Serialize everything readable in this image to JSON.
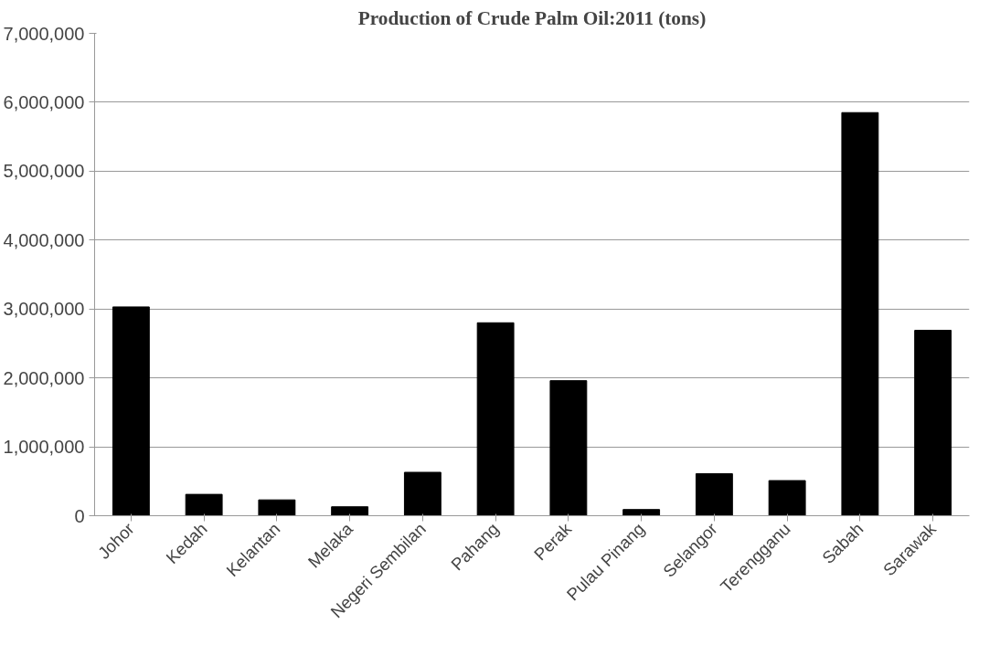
{
  "chart_data": {
    "type": "bar",
    "title": "Production of Crude Palm Oil:2011 (tons)",
    "categories": [
      "Johor",
      "Kedah",
      "Kelantan",
      "Melaka",
      "Negeri Sembilan",
      "Pahang",
      "Perak",
      "Pulau Pinang",
      "Selangor",
      "Terengganu",
      "Sabah",
      "Sarawak"
    ],
    "values": [
      3030000,
      310000,
      230000,
      130000,
      630000,
      2800000,
      1960000,
      90000,
      610000,
      510000,
      5850000,
      2690000
    ],
    "color": "#000000",
    "ylim": [
      0,
      7000000
    ],
    "yticks": [
      {
        "value": 0,
        "label": "0"
      },
      {
        "value": 1000000,
        "label": "1,000,000"
      },
      {
        "value": 2000000,
        "label": "2,000,000"
      },
      {
        "value": 3000000,
        "label": "3,000,000"
      },
      {
        "value": 4000000,
        "label": "4,000,000"
      },
      {
        "value": 5000000,
        "label": "5,000,000"
      },
      {
        "value": 6000000,
        "label": "6,000,000"
      },
      {
        "value": 7000000,
        "label": "7,000,000"
      }
    ],
    "grid": "y"
  }
}
